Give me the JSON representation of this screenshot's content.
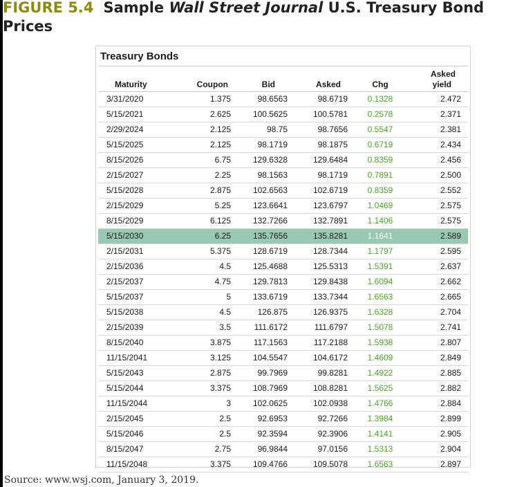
{
  "figure": {
    "label": "FIGURE 5.4",
    "title_pre": "Sample ",
    "title_italic": "Wall Street Journal",
    "title_post": " U.S. Treasury Bond Prices"
  },
  "panel": {
    "title": "Treasury Bonds"
  },
  "table": {
    "headers": {
      "maturity": "Maturity",
      "coupon": "Coupon",
      "bid": "Bid",
      "asked": "Asked",
      "chg": "Chg",
      "yield_line1": "Asked",
      "yield_line2": "yield"
    },
    "highlight_color": "#9ac9b3",
    "change_color": "#4fa32f",
    "rows": [
      {
        "maturity": "3/31/2020",
        "coupon": "1.375",
        "bid": "98.6563",
        "asked": "98.6719",
        "chg": "0.1328",
        "yield": "2.472",
        "highlight": false
      },
      {
        "maturity": "5/15/2021",
        "coupon": "2.625",
        "bid": "100.5625",
        "asked": "100.5781",
        "chg": "0.2578",
        "yield": "2.371",
        "highlight": false
      },
      {
        "maturity": "2/29/2024",
        "coupon": "2.125",
        "bid": "98.75",
        "asked": "98.7656",
        "chg": "0.5547",
        "yield": "2.381",
        "highlight": false
      },
      {
        "maturity": "5/15/2025",
        "coupon": "2.125",
        "bid": "98.1719",
        "asked": "98.1875",
        "chg": "0.6719",
        "yield": "2.434",
        "highlight": false
      },
      {
        "maturity": "8/15/2026",
        "coupon": "6.75",
        "bid": "129.6328",
        "asked": "129.6484",
        "chg": "0.8359",
        "yield": "2.456",
        "highlight": false
      },
      {
        "maturity": "2/15/2027",
        "coupon": "2.25",
        "bid": "98.1563",
        "asked": "98.1719",
        "chg": "0.7891",
        "yield": "2.500",
        "highlight": false
      },
      {
        "maturity": "5/15/2028",
        "coupon": "2.875",
        "bid": "102.6563",
        "asked": "102.6719",
        "chg": "0.8359",
        "yield": "2.552",
        "highlight": false
      },
      {
        "maturity": "2/15/2029",
        "coupon": "5.25",
        "bid": "123.6641",
        "asked": "123.6797",
        "chg": "1.0469",
        "yield": "2.575",
        "highlight": false
      },
      {
        "maturity": "8/15/2029",
        "coupon": "6.125",
        "bid": "132.7266",
        "asked": "132.7891",
        "chg": "1.1406",
        "yield": "2.575",
        "highlight": false
      },
      {
        "maturity": "5/15/2030",
        "coupon": "6.25",
        "bid": "135.7656",
        "asked": "135.8281",
        "chg": "1.1641",
        "yield": "2.589",
        "highlight": true
      },
      {
        "maturity": "2/15/2031",
        "coupon": "5.375",
        "bid": "128.6719",
        "asked": "128.7344",
        "chg": "1.1797",
        "yield": "2.595",
        "highlight": false
      },
      {
        "maturity": "2/15/2036",
        "coupon": "4.5",
        "bid": "125.4688",
        "asked": "125.5313",
        "chg": "1.5391",
        "yield": "2.637",
        "highlight": false
      },
      {
        "maturity": "2/15/2037",
        "coupon": "4.75",
        "bid": "129.7813",
        "asked": "129.8438",
        "chg": "1.6094",
        "yield": "2.662",
        "highlight": false
      },
      {
        "maturity": "5/15/2037",
        "coupon": "5",
        "bid": "133.6719",
        "asked": "133.7344",
        "chg": "1.6563",
        "yield": "2.665",
        "highlight": false
      },
      {
        "maturity": "5/15/2038",
        "coupon": "4.5",
        "bid": "126.875",
        "asked": "126.9375",
        "chg": "1.6328",
        "yield": "2.704",
        "highlight": false
      },
      {
        "maturity": "2/15/2039",
        "coupon": "3.5",
        "bid": "111.6172",
        "asked": "111.6797",
        "chg": "1.5078",
        "yield": "2.741",
        "highlight": false
      },
      {
        "maturity": "8/15/2040",
        "coupon": "3.875",
        "bid": "117.1563",
        "asked": "117.2188",
        "chg": "1.5938",
        "yield": "2.807",
        "highlight": false
      },
      {
        "maturity": "11/15/2041",
        "coupon": "3.125",
        "bid": "104.5547",
        "asked": "104.6172",
        "chg": "1.4609",
        "yield": "2.849",
        "highlight": false
      },
      {
        "maturity": "5/15/2043",
        "coupon": "2.875",
        "bid": "99.7969",
        "asked": "99.8281",
        "chg": "1.4922",
        "yield": "2.885",
        "highlight": false
      },
      {
        "maturity": "5/15/2044",
        "coupon": "3.375",
        "bid": "108.7969",
        "asked": "108.8281",
        "chg": "1.5625",
        "yield": "2.882",
        "highlight": false
      },
      {
        "maturity": "11/15/2044",
        "coupon": "3",
        "bid": "102.0625",
        "asked": "102.0938",
        "chg": "1.4766",
        "yield": "2.884",
        "highlight": false
      },
      {
        "maturity": "2/15/2045",
        "coupon": "2.5",
        "bid": "92.6953",
        "asked": "92.7266",
        "chg": "1.3984",
        "yield": "2.899",
        "highlight": false
      },
      {
        "maturity": "5/15/2046",
        "coupon": "2.5",
        "bid": "92.3594",
        "asked": "92.3906",
        "chg": "1.4141",
        "yield": "2.905",
        "highlight": false
      },
      {
        "maturity": "8/15/2047",
        "coupon": "2.75",
        "bid": "96.9844",
        "asked": "97.0156",
        "chg": "1.5313",
        "yield": "2.904",
        "highlight": false
      },
      {
        "maturity": "11/15/2048",
        "coupon": "3.375",
        "bid": "109.4766",
        "asked": "109.5078",
        "chg": "1.6563",
        "yield": "2.897",
        "highlight": false
      }
    ]
  },
  "source": "Source: www.wsj.com, January 3, 2019."
}
